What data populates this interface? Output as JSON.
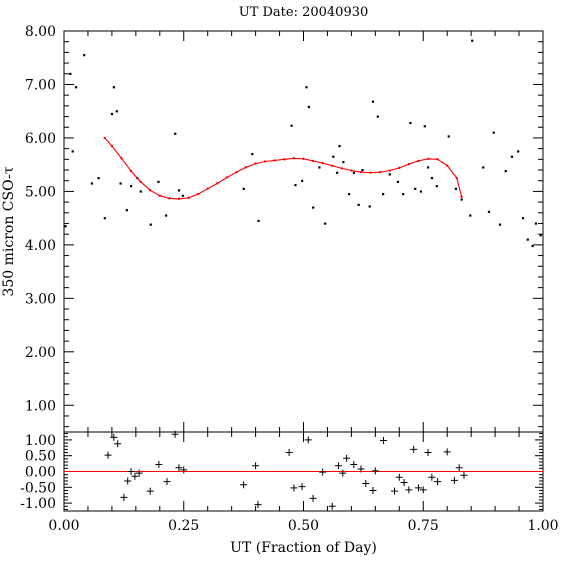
{
  "chart_data": [
    {
      "panel": "main",
      "type": "scatter",
      "title": "UT Date: 20040930",
      "xlabel": "",
      "ylabel": "350 micron CSO-τ",
      "xlim": [
        0.0,
        1.0
      ],
      "ylim": [
        0.5,
        8.0
      ],
      "yticks": [
        "1.00",
        "2.00",
        "3.00",
        "4.00",
        "5.00",
        "6.00",
        "7.00",
        "8.00"
      ],
      "xticks": [
        "0.00",
        "0.25",
        "0.50",
        "0.75",
        "1.00"
      ],
      "series": [
        {
          "role": "measurements",
          "marker": "dot",
          "color": "#000000",
          "x": [
            0.003,
            0.013,
            0.018,
            0.025,
            0.042,
            0.058,
            0.072,
            0.085,
            0.1,
            0.104,
            0.11,
            0.118,
            0.131,
            0.14,
            0.153,
            0.16,
            0.181,
            0.197,
            0.213,
            0.232,
            0.24,
            0.248,
            0.375,
            0.393,
            0.406,
            0.475,
            0.483,
            0.497,
            0.506,
            0.511,
            0.52,
            0.533,
            0.545,
            0.562,
            0.57,
            0.575,
            0.583,
            0.595,
            0.605,
            0.615,
            0.623,
            0.638,
            0.645,
            0.655,
            0.666,
            0.68,
            0.697,
            0.708,
            0.723,
            0.733,
            0.745,
            0.753,
            0.76,
            0.768,
            0.778,
            0.803,
            0.818,
            0.83,
            0.848,
            0.852,
            0.875,
            0.887,
            0.897,
            0.91,
            0.922,
            0.935,
            0.948,
            0.958,
            0.968,
            0.978,
            0.985,
            0.995
          ],
          "y": [
            4.35,
            7.2,
            5.75,
            6.95,
            7.55,
            5.15,
            5.25,
            4.5,
            6.45,
            6.95,
            6.5,
            5.15,
            4.65,
            5.1,
            5.25,
            5.0,
            4.38,
            5.18,
            4.55,
            6.08,
            5.02,
            4.92,
            5.05,
            5.7,
            4.45,
            6.23,
            5.12,
            5.2,
            6.95,
            6.58,
            4.7,
            5.45,
            4.4,
            5.65,
            5.35,
            5.85,
            5.55,
            4.95,
            5.35,
            4.75,
            5.4,
            4.72,
            6.68,
            6.4,
            4.95,
            5.32,
            5.18,
            4.95,
            6.28,
            5.05,
            5.0,
            6.22,
            5.45,
            5.25,
            5.1,
            6.03,
            5.05,
            4.85,
            4.55,
            7.82,
            5.45,
            4.62,
            6.1,
            4.38,
            5.38,
            5.65,
            5.75,
            4.5,
            4.1,
            3.98,
            4.4,
            4.18
          ]
        },
        {
          "role": "fit",
          "marker": "line",
          "color": "#ff0000",
          "x": [
            0.085,
            0.1,
            0.12,
            0.14,
            0.16,
            0.18,
            0.2,
            0.22,
            0.24,
            0.26,
            0.28,
            0.3,
            0.32,
            0.34,
            0.36,
            0.38,
            0.4,
            0.42,
            0.44,
            0.46,
            0.48,
            0.5,
            0.52,
            0.54,
            0.56,
            0.58,
            0.6,
            0.62,
            0.64,
            0.66,
            0.68,
            0.7,
            0.72,
            0.74,
            0.76,
            0.78,
            0.8,
            0.82,
            0.83
          ],
          "y": [
            6.0,
            5.85,
            5.62,
            5.38,
            5.18,
            5.02,
            4.92,
            4.87,
            4.86,
            4.88,
            4.95,
            5.05,
            5.15,
            5.26,
            5.36,
            5.45,
            5.52,
            5.56,
            5.58,
            5.6,
            5.62,
            5.61,
            5.57,
            5.53,
            5.48,
            5.43,
            5.39,
            5.36,
            5.35,
            5.36,
            5.39,
            5.44,
            5.51,
            5.57,
            5.61,
            5.6,
            5.48,
            5.25,
            4.9
          ]
        }
      ]
    },
    {
      "panel": "residuals",
      "type": "scatter",
      "title": "",
      "xlabel": "UT (Fraction of Day)",
      "ylabel": "",
      "xlim": [
        0.0,
        1.0
      ],
      "ylim": [
        -1.25,
        1.25
      ],
      "yticks": [
        "1.00",
        "0.50",
        "0.00",
        "-0.50",
        "-1.00"
      ],
      "xticks": [
        "0.00",
        "0.25",
        "0.50",
        "0.75",
        "1.00"
      ],
      "series": [
        {
          "role": "residuals",
          "marker": "plus",
          "color": "#000000",
          "x": [
            0.092,
            0.104,
            0.112,
            0.125,
            0.133,
            0.14,
            0.148,
            0.157,
            0.18,
            0.198,
            0.215,
            0.232,
            0.24,
            0.25,
            0.375,
            0.4,
            0.405,
            0.47,
            0.48,
            0.497,
            0.51,
            0.52,
            0.54,
            0.56,
            0.573,
            0.582,
            0.59,
            0.605,
            0.62,
            0.63,
            0.645,
            0.65,
            0.667,
            0.69,
            0.7,
            0.71,
            0.72,
            0.73,
            0.74,
            0.75,
            0.76,
            0.768,
            0.78,
            0.8,
            0.815,
            0.825,
            0.835
          ],
          "y": [
            0.52,
            1.08,
            0.88,
            -0.82,
            -0.3,
            0.0,
            -0.15,
            -0.05,
            -0.62,
            0.22,
            -0.32,
            1.18,
            0.12,
            0.05,
            -0.42,
            0.18,
            -1.05,
            0.6,
            -0.52,
            -0.48,
            1.0,
            -0.85,
            -0.02,
            -1.1,
            0.18,
            -0.05,
            0.42,
            0.22,
            0.08,
            -0.38,
            -0.6,
            0.02,
            0.98,
            -0.62,
            -0.18,
            -0.35,
            -0.58,
            0.7,
            -0.52,
            -0.58,
            0.6,
            -0.18,
            -0.32,
            0.62,
            -0.28,
            0.12,
            -0.12
          ]
        },
        {
          "role": "zero-line",
          "marker": "line",
          "color": "#ff0000",
          "x": [
            0.0,
            1.0
          ],
          "y": [
            0.0,
            0.0
          ]
        }
      ]
    }
  ]
}
